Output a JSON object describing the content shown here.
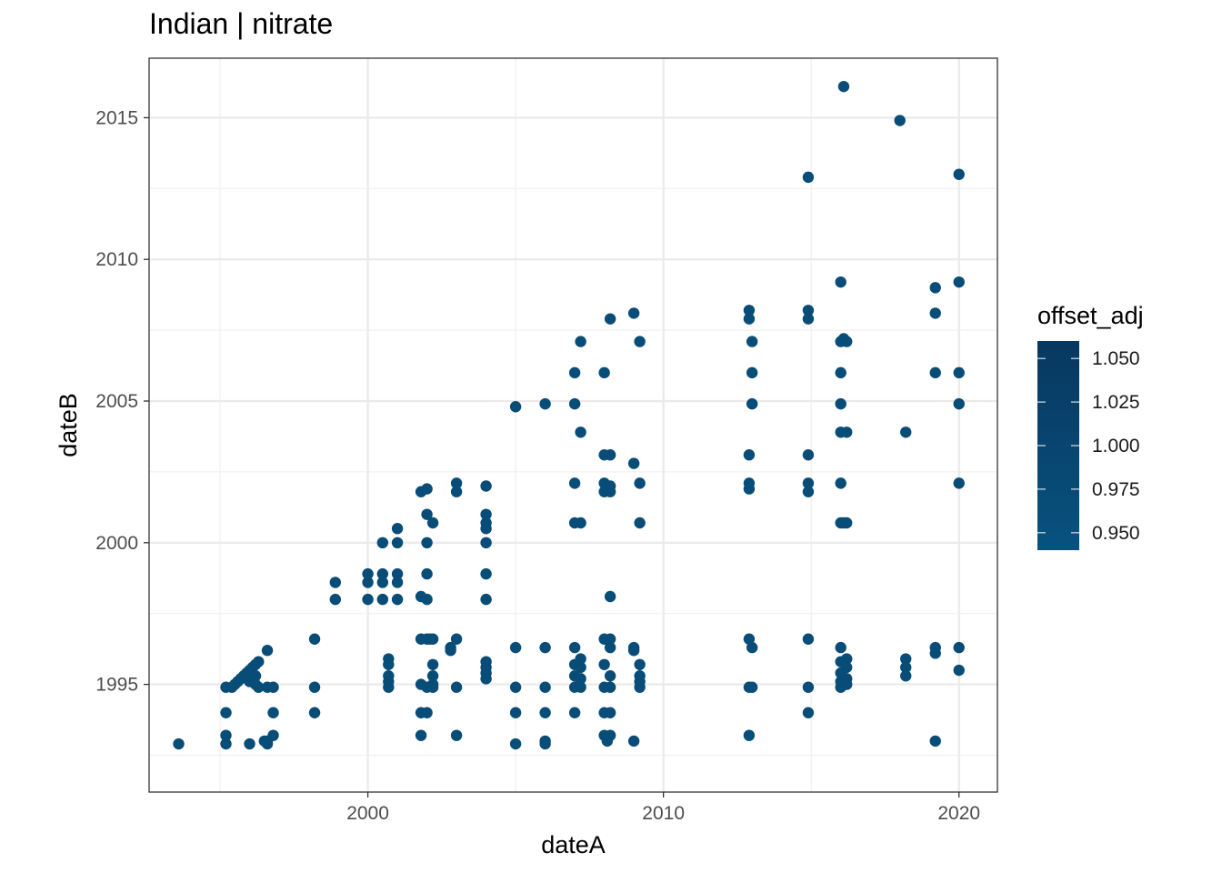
{
  "chart_data": {
    "type": "scatter",
    "title": "Indian | nitrate",
    "xlabel": "dateA",
    "ylabel": "dateB",
    "xlim": [
      1992.6,
      2021.3
    ],
    "ylim": [
      1991.2,
      2017.1
    ],
    "x_ticks": [
      2000,
      2010,
      2020
    ],
    "y_ticks": [
      1995,
      2000,
      2005,
      2010,
      2015
    ],
    "grid": true,
    "legend": {
      "title": "offset_adj",
      "position": "right",
      "type": "colorbar",
      "range": [
        0.94,
        1.06
      ],
      "ticks": [
        0.95,
        0.975,
        1.0,
        1.025,
        1.05
      ],
      "tick_labels": [
        "0.950",
        "0.975",
        "1.000",
        "1.025",
        "1.050"
      ],
      "colors": [
        "#08527f",
        "#083860"
      ]
    },
    "point_color": "#084c78",
    "points": [
      [
        1993.6,
        1992.9
      ],
      [
        1995.2,
        1992.9
      ],
      [
        1995.2,
        1993.2
      ],
      [
        1995.2,
        1994.0
      ],
      [
        1995.2,
        1994.9
      ],
      [
        1995.4,
        1994.9
      ],
      [
        1995.5,
        1995.0
      ],
      [
        1995.6,
        1995.1
      ],
      [
        1995.7,
        1995.2
      ],
      [
        1995.8,
        1995.3
      ],
      [
        1995.9,
        1995.4
      ],
      [
        1996.0,
        1995.5
      ],
      [
        1996.1,
        1995.6
      ],
      [
        1996.2,
        1995.7
      ],
      [
        1996.3,
        1995.8
      ],
      [
        1996.0,
        1995.1
      ],
      [
        1996.1,
        1995.2
      ],
      [
        1996.2,
        1995.3
      ],
      [
        1996.2,
        1995.0
      ],
      [
        1996.3,
        1994.9
      ],
      [
        1996.0,
        1992.9
      ],
      [
        1996.5,
        1993.0
      ],
      [
        1996.6,
        1993.0
      ],
      [
        1996.6,
        1992.9
      ],
      [
        1996.6,
        1994.9
      ],
      [
        1996.6,
        1996.2
      ],
      [
        1996.8,
        1993.2
      ],
      [
        1996.8,
        1994.0
      ],
      [
        1996.8,
        1994.9
      ],
      [
        1998.2,
        1996.6
      ],
      [
        1998.2,
        1994.9
      ],
      [
        1998.2,
        1994.0
      ],
      [
        1998.9,
        1998.6
      ],
      [
        1998.9,
        1998.0
      ],
      [
        2000.0,
        1998.9
      ],
      [
        2000.0,
        1998.6
      ],
      [
        2000.0,
        1998.0
      ],
      [
        2000.5,
        2000.0
      ],
      [
        2000.5,
        1998.9
      ],
      [
        2000.5,
        1998.6
      ],
      [
        2000.5,
        1998.0
      ],
      [
        2000.7,
        1995.9
      ],
      [
        2000.7,
        1995.7
      ],
      [
        2000.7,
        1995.3
      ],
      [
        2000.7,
        1995.1
      ],
      [
        2000.7,
        1994.9
      ],
      [
        2001.0,
        2000.5
      ],
      [
        2001.0,
        2000.0
      ],
      [
        2001.0,
        1998.9
      ],
      [
        2001.0,
        1998.6
      ],
      [
        2001.0,
        1998.0
      ],
      [
        2001.8,
        2001.8
      ],
      [
        2001.8,
        1998.1
      ],
      [
        2001.8,
        1996.6
      ],
      [
        2001.8,
        1995.0
      ],
      [
        2001.8,
        1994.0
      ],
      [
        2001.8,
        1993.2
      ],
      [
        2002.0,
        2001.9
      ],
      [
        2002.0,
        2001.0
      ],
      [
        2002.0,
        2000.0
      ],
      [
        2002.0,
        1998.9
      ],
      [
        2002.0,
        1998.0
      ],
      [
        2002.0,
        1996.6
      ],
      [
        2002.0,
        1994.0
      ],
      [
        2002.0,
        1994.9
      ],
      [
        2002.2,
        2000.7
      ],
      [
        2002.2,
        1996.6
      ],
      [
        2002.2,
        1995.7
      ],
      [
        2002.2,
        1995.3
      ],
      [
        2002.2,
        1995.0
      ],
      [
        2002.2,
        1994.9
      ],
      [
        2002.1,
        1996.6
      ],
      [
        2002.8,
        1996.3
      ],
      [
        2002.8,
        1996.2
      ],
      [
        2003.0,
        2002.1
      ],
      [
        2003.0,
        2001.8
      ],
      [
        2003.0,
        1996.6
      ],
      [
        2003.0,
        1994.9
      ],
      [
        2003.0,
        1993.2
      ],
      [
        2004.0,
        2002.0
      ],
      [
        2004.0,
        2001.0
      ],
      [
        2004.0,
        2000.7
      ],
      [
        2004.0,
        2000.5
      ],
      [
        2004.0,
        2000.0
      ],
      [
        2004.0,
        1998.9
      ],
      [
        2004.0,
        1998.0
      ],
      [
        2004.0,
        1995.8
      ],
      [
        2004.0,
        1995.6
      ],
      [
        2004.0,
        1995.4
      ],
      [
        2004.0,
        1995.2
      ],
      [
        2005.0,
        2004.8
      ],
      [
        2005.0,
        1996.3
      ],
      [
        2005.0,
        1994.9
      ],
      [
        2005.0,
        1994.0
      ],
      [
        2005.0,
        1992.9
      ],
      [
        2006.0,
        2004.9
      ],
      [
        2006.0,
        1996.3
      ],
      [
        2006.0,
        1994.9
      ],
      [
        2006.0,
        1994.0
      ],
      [
        2006.0,
        1993.0
      ],
      [
        2006.0,
        1992.9
      ],
      [
        2007.0,
        2006.0
      ],
      [
        2007.0,
        2004.9
      ],
      [
        2007.0,
        2002.1
      ],
      [
        2007.0,
        2000.7
      ],
      [
        2007.0,
        1996.3
      ],
      [
        2007.0,
        1995.7
      ],
      [
        2007.0,
        1995.3
      ],
      [
        2007.0,
        1994.9
      ],
      [
        2007.0,
        1994.0
      ],
      [
        2007.2,
        2007.1
      ],
      [
        2007.2,
        2003.9
      ],
      [
        2007.2,
        2000.7
      ],
      [
        2007.2,
        1995.9
      ],
      [
        2007.2,
        1995.6
      ],
      [
        2007.2,
        1995.2
      ],
      [
        2007.2,
        1994.9
      ],
      [
        2008.0,
        2006.0
      ],
      [
        2008.0,
        2003.1
      ],
      [
        2008.0,
        2002.1
      ],
      [
        2008.0,
        2001.8
      ],
      [
        2008.0,
        1996.6
      ],
      [
        2008.0,
        1995.7
      ],
      [
        2008.0,
        1994.9
      ],
      [
        2008.0,
        1994.0
      ],
      [
        2008.0,
        1993.2
      ],
      [
        2008.1,
        1993.0
      ],
      [
        2008.2,
        2007.9
      ],
      [
        2008.2,
        2003.1
      ],
      [
        2008.2,
        2002.0
      ],
      [
        2008.2,
        2001.8
      ],
      [
        2008.2,
        1998.1
      ],
      [
        2008.2,
        1996.6
      ],
      [
        2008.2,
        1996.3
      ],
      [
        2008.2,
        1995.3
      ],
      [
        2008.2,
        1994.9
      ],
      [
        2008.2,
        1994.0
      ],
      [
        2008.2,
        1993.2
      ],
      [
        2009.0,
        2008.1
      ],
      [
        2009.0,
        2002.8
      ],
      [
        2009.0,
        1996.3
      ],
      [
        2009.0,
        1996.2
      ],
      [
        2009.0,
        1993.0
      ],
      [
        2009.2,
        2007.1
      ],
      [
        2009.2,
        2002.1
      ],
      [
        2009.2,
        2000.7
      ],
      [
        2009.2,
        1995.7
      ],
      [
        2009.2,
        1995.3
      ],
      [
        2009.2,
        1995.1
      ],
      [
        2009.2,
        1994.9
      ],
      [
        2012.9,
        2008.2
      ],
      [
        2012.9,
        2007.9
      ],
      [
        2012.9,
        2003.1
      ],
      [
        2012.9,
        2002.1
      ],
      [
        2012.9,
        2001.9
      ],
      [
        2012.9,
        1996.6
      ],
      [
        2012.9,
        1994.9
      ],
      [
        2012.9,
        1993.2
      ],
      [
        2013.0,
        2007.1
      ],
      [
        2013.0,
        2006.0
      ],
      [
        2013.0,
        2004.9
      ],
      [
        2013.0,
        1996.3
      ],
      [
        2013.0,
        1994.9
      ],
      [
        2014.9,
        2012.9
      ],
      [
        2014.9,
        2008.2
      ],
      [
        2014.9,
        2007.9
      ],
      [
        2014.9,
        2003.1
      ],
      [
        2014.9,
        2002.1
      ],
      [
        2014.9,
        2001.8
      ],
      [
        2014.9,
        1996.6
      ],
      [
        2014.9,
        1994.9
      ],
      [
        2014.9,
        1994.0
      ],
      [
        2016.0,
        2009.2
      ],
      [
        2016.0,
        2007.1
      ],
      [
        2016.0,
        2006.0
      ],
      [
        2016.0,
        2004.9
      ],
      [
        2016.0,
        2003.9
      ],
      [
        2016.0,
        2002.1
      ],
      [
        2016.0,
        2000.7
      ],
      [
        2016.0,
        1996.3
      ],
      [
        2016.0,
        1995.8
      ],
      [
        2016.0,
        1995.4
      ],
      [
        2016.0,
        1995.1
      ],
      [
        2016.0,
        1994.9
      ],
      [
        2016.1,
        2016.1
      ],
      [
        2016.2,
        2007.1
      ],
      [
        2016.2,
        2003.9
      ],
      [
        2016.2,
        2000.7
      ],
      [
        2016.2,
        1995.9
      ],
      [
        2016.2,
        1995.6
      ],
      [
        2016.2,
        1995.2
      ],
      [
        2016.2,
        1995.0
      ],
      [
        2016.1,
        2007.2
      ],
      [
        2016.1,
        2000.7
      ],
      [
        2018.0,
        2014.9
      ],
      [
        2018.2,
        2003.9
      ],
      [
        2018.2,
        1995.9
      ],
      [
        2018.2,
        1995.6
      ],
      [
        2018.2,
        1995.3
      ],
      [
        2019.2,
        2009.0
      ],
      [
        2019.2,
        2008.1
      ],
      [
        2019.2,
        2006.0
      ],
      [
        2019.2,
        1996.3
      ],
      [
        2019.2,
        1996.1
      ],
      [
        2019.2,
        1993.0
      ],
      [
        2020.0,
        2013.0
      ],
      [
        2020.0,
        2009.2
      ],
      [
        2020.0,
        2006.0
      ],
      [
        2020.0,
        2004.9
      ],
      [
        2020.0,
        2002.1
      ],
      [
        2020.0,
        1996.3
      ],
      [
        2020.0,
        1995.5
      ]
    ]
  }
}
